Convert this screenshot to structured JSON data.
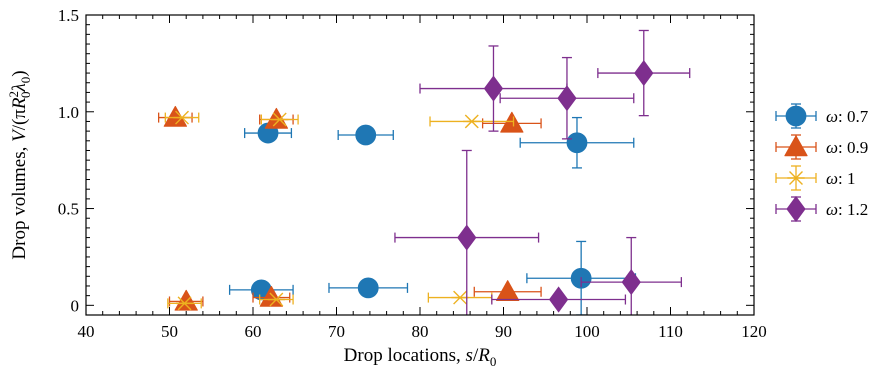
{
  "chart_data": {
    "type": "scatter",
    "xlabel": "Drop locations, s/R0",
    "ylabel": "Drop volumes, V/(πR0²λ0)",
    "xlim": [
      40,
      120
    ],
    "ylim": [
      -0.05,
      1.5
    ],
    "xticks": [
      40,
      50,
      60,
      70,
      80,
      90,
      100,
      110,
      120
    ],
    "yticks": [
      0,
      0.5,
      1.0,
      1.5
    ],
    "ytick_labels": [
      "0",
      "0.5",
      "1.0",
      "1.5"
    ],
    "grid": false,
    "legend_position": "right",
    "series": [
      {
        "name": "ω: 0.7",
        "marker": "circle",
        "color": "#1f77b4",
        "points": [
          {
            "x": 61.8,
            "y": 0.89,
            "xerr": 2.8,
            "yerr": 0.0
          },
          {
            "x": 73.5,
            "y": 0.88,
            "xerr": 3.3,
            "yerr": 0.0
          },
          {
            "x": 98.8,
            "y": 0.84,
            "xerr": 6.8,
            "yerr": 0.13
          },
          {
            "x": 61.0,
            "y": 0.08,
            "xerr": 3.8,
            "yerr": 0.0
          },
          {
            "x": 73.8,
            "y": 0.09,
            "xerr": 4.7,
            "yerr": 0.0
          },
          {
            "x": 99.3,
            "y": 0.14,
            "xerr": 6.5,
            "yerr": 0.19
          }
        ]
      },
      {
        "name": "ω: 0.9",
        "marker": "triangle",
        "color": "#d95319",
        "points": [
          {
            "x": 50.7,
            "y": 0.97,
            "xerr": 2.0,
            "yerr": 0.0
          },
          {
            "x": 62.8,
            "y": 0.96,
            "xerr": 2.0,
            "yerr": 0.0
          },
          {
            "x": 91.0,
            "y": 0.94,
            "xerr": 3.5,
            "yerr": 0.0
          },
          {
            "x": 52.0,
            "y": 0.02,
            "xerr": 2.0,
            "yerr": 0.0
          },
          {
            "x": 62.2,
            "y": 0.04,
            "xerr": 2.2,
            "yerr": 0.0
          },
          {
            "x": 90.5,
            "y": 0.07,
            "xerr": 4.0,
            "yerr": 0.0
          }
        ]
      },
      {
        "name": "ω: 1",
        "marker": "asterisk",
        "color": "#edb120",
        "points": [
          {
            "x": 51.5,
            "y": 0.97,
            "xerr": 2.0,
            "yerr": 0.0
          },
          {
            "x": 63.2,
            "y": 0.96,
            "xerr": 2.2,
            "yerr": 0.0
          },
          {
            "x": 86.2,
            "y": 0.95,
            "xerr": 5.0,
            "yerr": 0.0
          },
          {
            "x": 51.8,
            "y": 0.01,
            "xerr": 2.0,
            "yerr": 0.0
          },
          {
            "x": 62.8,
            "y": 0.03,
            "xerr": 2.0,
            "yerr": 0.0
          },
          {
            "x": 84.8,
            "y": 0.04,
            "xerr": 3.8,
            "yerr": 0.0
          }
        ]
      },
      {
        "name": "ω: 1.2",
        "marker": "diamond",
        "color": "#7e2f8e",
        "points": [
          {
            "x": 88.8,
            "y": 1.12,
            "xerr": 8.8,
            "yerr": 0.22
          },
          {
            "x": 97.6,
            "y": 1.07,
            "xerr": 8.0,
            "yerr": 0.21
          },
          {
            "x": 106.8,
            "y": 1.2,
            "xerr": 5.5,
            "yerr": 0.22
          },
          {
            "x": 85.6,
            "y": 0.35,
            "xerr": 8.6,
            "yerr": 0.45
          },
          {
            "x": 96.6,
            "y": 0.03,
            "xerr": 8.0,
            "yerr": 0.0
          },
          {
            "x": 105.3,
            "y": 0.12,
            "xerr": 6.0,
            "yerr": 0.23
          }
        ]
      }
    ]
  }
}
